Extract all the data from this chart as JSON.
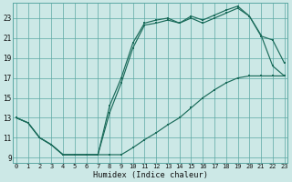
{
  "xlabel": "Humidex (Indice chaleur)",
  "bg_color": "#cce8e6",
  "grid_color": "#5ba8a3",
  "line_color": "#1a6b5a",
  "xlim": [
    -0.3,
    23.3
  ],
  "ylim": [
    8.5,
    24.5
  ],
  "yticks": [
    9,
    11,
    13,
    15,
    17,
    19,
    21,
    23
  ],
  "xticks": [
    0,
    1,
    2,
    3,
    4,
    5,
    6,
    7,
    8,
    9,
    10,
    11,
    12,
    13,
    14,
    15,
    16,
    17,
    18,
    19,
    20,
    21,
    22,
    23
  ],
  "line1_x": [
    0,
    1,
    2,
    3,
    4,
    5,
    6,
    7,
    8,
    9,
    10,
    11,
    12,
    13,
    14,
    15,
    16,
    17,
    18,
    19,
    20,
    21,
    22,
    23
  ],
  "line1_y": [
    13,
    12.5,
    11.0,
    10.3,
    9.3,
    9.3,
    9.3,
    9.3,
    9.3,
    9.3,
    10.0,
    10.8,
    11.5,
    12.3,
    13.0,
    14.0,
    15.0,
    15.8,
    16.5,
    17.0,
    17.2,
    17.2,
    17.2,
    17.2
  ],
  "line2_x": [
    0,
    1,
    2,
    3,
    4,
    5,
    6,
    7,
    8,
    9,
    10,
    11,
    12,
    13,
    14,
    15,
    16,
    17,
    18,
    19,
    20,
    21,
    22,
    23
  ],
  "line2_y": [
    13,
    12.5,
    11.0,
    10.3,
    9.3,
    9.3,
    9.3,
    9.3,
    14.2,
    17.0,
    20.5,
    22.5,
    22.8,
    23.0,
    22.5,
    23.2,
    22.8,
    23.3,
    23.8,
    24.2,
    23.2,
    21.3,
    18.2,
    17.2
  ],
  "line3_x": [
    0,
    1,
    2,
    3,
    4,
    5,
    6,
    7,
    8,
    9,
    10,
    11,
    12,
    13,
    14,
    15,
    16,
    17,
    18,
    19,
    20,
    21,
    22,
    23
  ],
  "line3_y": [
    13,
    12.5,
    11.0,
    10.3,
    9.3,
    9.3,
    9.3,
    9.3,
    13.5,
    16.5,
    20.0,
    22.3,
    22.5,
    22.8,
    22.5,
    23.0,
    22.5,
    23.0,
    23.5,
    24.0,
    23.2,
    21.2,
    20.8,
    18.5
  ]
}
